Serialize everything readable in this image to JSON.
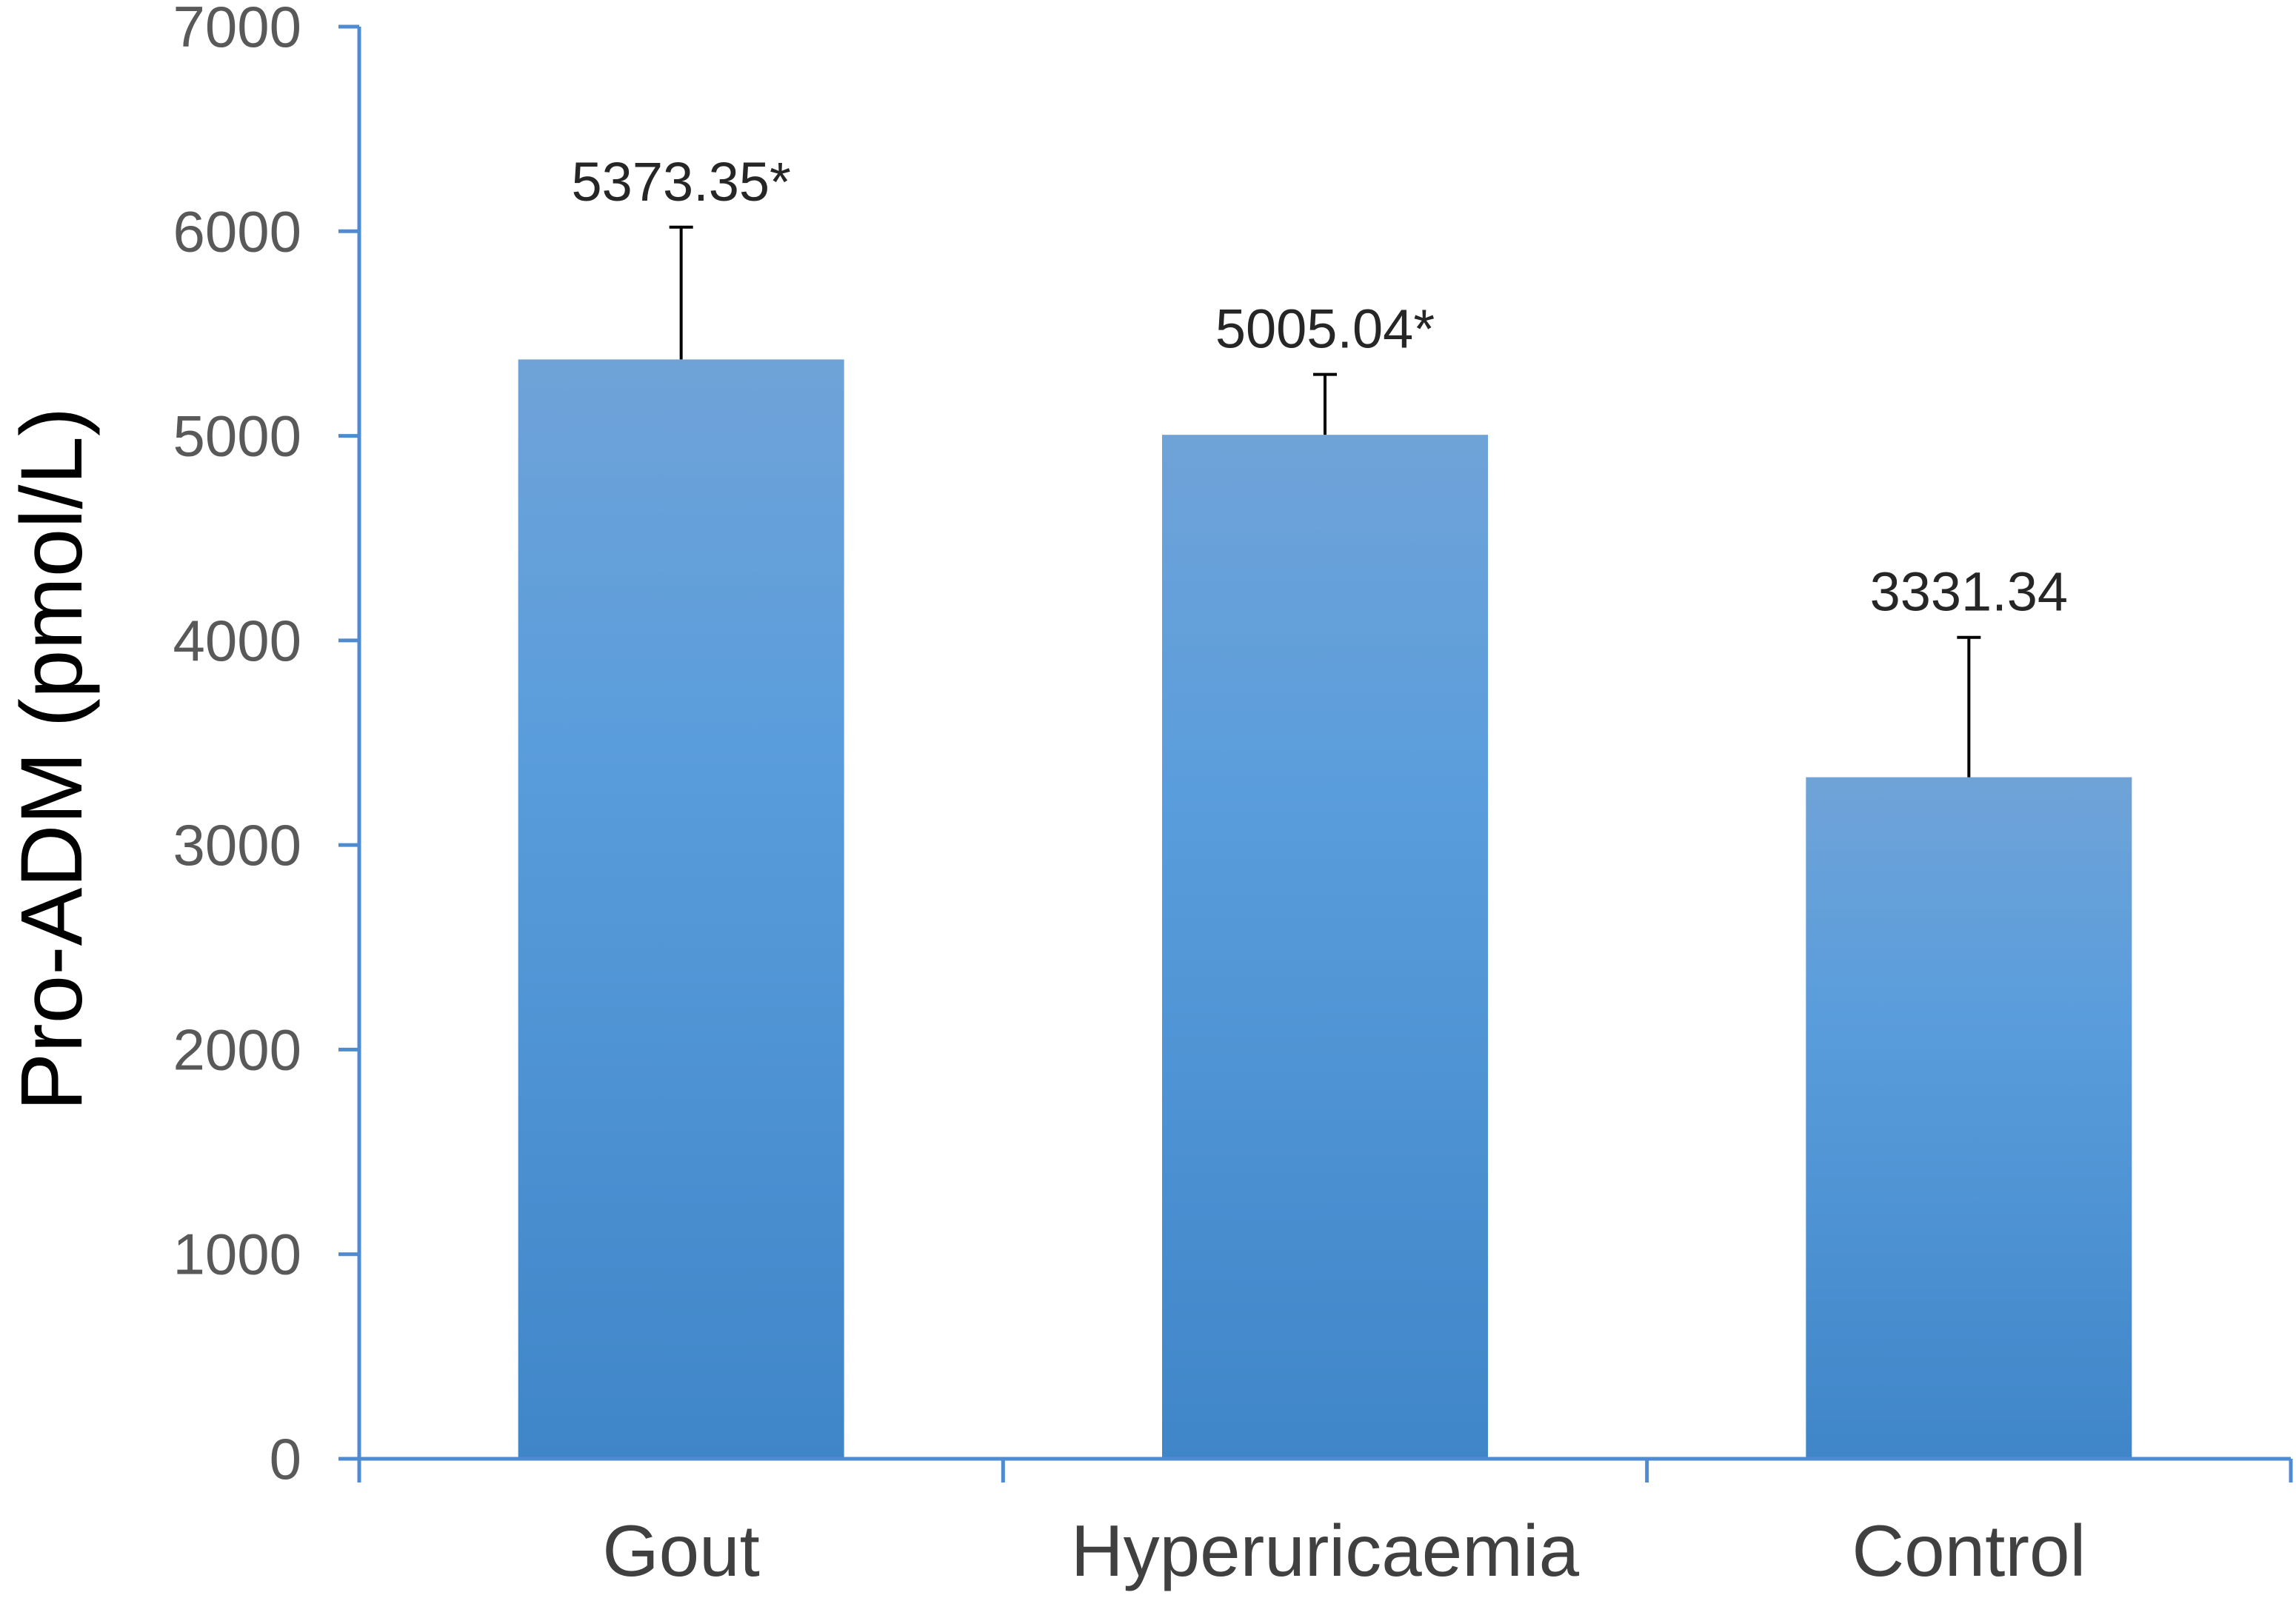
{
  "chart_data": {
    "type": "bar",
    "title": "",
    "xlabel": "",
    "ylabel": "Pro-ADM (pmol/L)",
    "categories": [
      "Gout",
      "Hyperuricaemia",
      "Control"
    ],
    "values": [
      5373.35,
      5005.04,
      3331.34
    ],
    "error_upper": [
      6020,
      5300,
      4015
    ],
    "data_labels": [
      "5373.35*",
      "5005.04*",
      "3331.34"
    ],
    "ylim": [
      0,
      7000
    ],
    "yticks": [
      0,
      1000,
      2000,
      3000,
      4000,
      5000,
      6000,
      7000
    ],
    "ytick_labels": [
      "0",
      "1000",
      "2000",
      "3000",
      "4000",
      "5000",
      "6000",
      "7000"
    ],
    "grid": false,
    "legend": "none",
    "colors": {
      "bar_top": "#6fa3d8",
      "bar_bottom": "#3f86c8",
      "axis": "#4f8bd0",
      "error_bar": "#000000"
    }
  }
}
